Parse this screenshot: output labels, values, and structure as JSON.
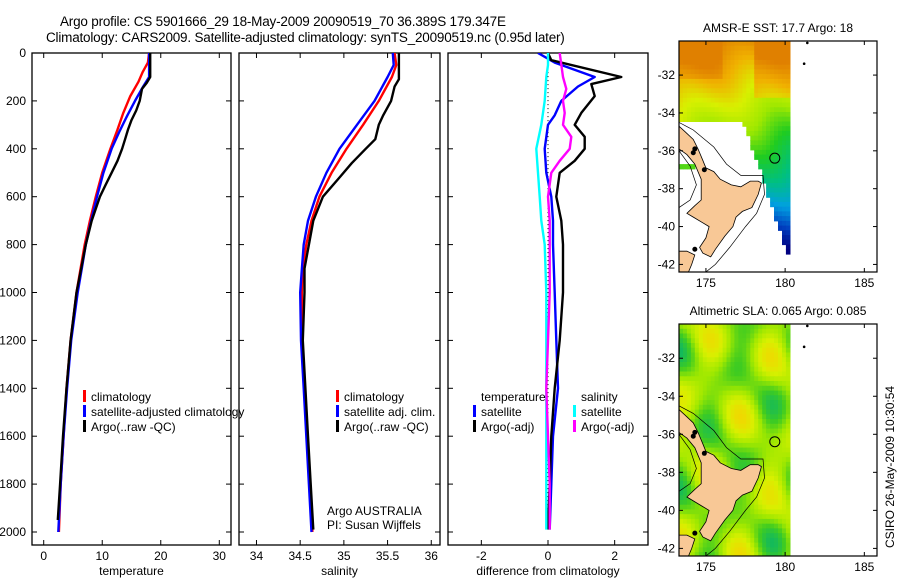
{
  "header": {
    "line1": "Argo profile: CS 5901666_29 18-May-2009 20090519_70 36.389S 179.347E",
    "line2": "Climatology: CARS2009. Satellite-adjusted climatology: synTS_20090519.nc (0.95d later)"
  },
  "footer_vertical": "CSIRO 26-May-2009 10:30:54",
  "chart_data": [
    {
      "id": "temperature",
      "type": "line",
      "xlabel": "temperature",
      "ylabel": "",
      "xlim": [
        -2,
        32
      ],
      "ylim": [
        0,
        2050
      ],
      "y_reversed": true,
      "xticks": [
        0,
        10,
        20,
        30
      ],
      "yticks": [
        0,
        200,
        400,
        600,
        800,
        1000,
        1200,
        1400,
        1600,
        1800,
        2000
      ],
      "legend": {
        "position": "center",
        "entries": [
          {
            "label": "climatology",
            "color": "#ff0000"
          },
          {
            "label": "satellite-adjusted climatology",
            "color": "#0000ff"
          },
          {
            "label": "Argo(..raw -QC)",
            "color": "#000000"
          }
        ]
      },
      "series": [
        {
          "name": "climatology",
          "color": "#ff0000",
          "depth": [
            0,
            40,
            80,
            120,
            180,
            250,
            320,
            400,
            500,
            600,
            700,
            800,
            900,
            1000,
            1200,
            1400,
            1600,
            1800,
            2000
          ],
          "values": [
            18.0,
            17.8,
            16.9,
            16.2,
            14.8,
            13.6,
            12.6,
            11.4,
            10.0,
            8.9,
            7.9,
            7.0,
            6.3,
            5.6,
            4.6,
            3.9,
            3.4,
            2.9,
            2.6
          ]
        },
        {
          "name": "satellite-adjusted climatology",
          "color": "#0000ff",
          "depth": [
            0,
            60,
            100,
            140,
            200,
            260,
            330,
            400,
            500,
            600,
            700,
            800,
            900,
            1000,
            1200,
            1400,
            1600,
            1800,
            2000
          ],
          "values": [
            18.0,
            18.0,
            18.0,
            17.0,
            15.6,
            14.3,
            12.9,
            11.6,
            10.2,
            9.1,
            8.1,
            7.2,
            6.5,
            5.8,
            4.7,
            4.0,
            3.4,
            2.9,
            2.5
          ]
        },
        {
          "name": "Argo(..raw -QC)",
          "color": "#000000",
          "depth": [
            0,
            100,
            125,
            150,
            200,
            240,
            280,
            320,
            360,
            400,
            450,
            500,
            550,
            600,
            700,
            800,
            900,
            1000,
            1200,
            1400,
            1600,
            1800,
            1950
          ],
          "values": [
            18.2,
            18.2,
            17.6,
            16.8,
            16.4,
            15.8,
            15.0,
            14.4,
            13.9,
            13.4,
            12.6,
            11.6,
            10.6,
            9.6,
            8.2,
            7.2,
            6.4,
            5.6,
            4.6,
            3.9,
            3.3,
            2.8,
            2.4
          ]
        }
      ]
    },
    {
      "id": "salinity",
      "type": "line",
      "xlabel": "salinity",
      "xlim": [
        33.8,
        36.1
      ],
      "ylim": [
        0,
        2050
      ],
      "y_reversed": true,
      "xticks": [
        34,
        34.5,
        35,
        35.5,
        36
      ],
      "xticklabels": [
        "34",
        "34.5",
        "35",
        "35.5",
        "36"
      ],
      "legend": {
        "position": "center-right",
        "entries": [
          {
            "label": "climatology",
            "color": "#ff0000"
          },
          {
            "label": "satellite adj. clim.",
            "color": "#0000ff"
          },
          {
            "label": "Argo(..raw -QC)",
            "color": "#000000"
          }
        ]
      },
      "annotation": [
        "Argo AUSTRALIA",
        "PI: Susan Wijffels"
      ],
      "series": [
        {
          "name": "climatology",
          "color": "#ff0000",
          "depth": [
            0,
            50,
            100,
            200,
            300,
            400,
            500,
            600,
            700,
            800,
            900,
            1000,
            1200,
            1400,
            1600,
            1800,
            2000
          ],
          "values": [
            35.58,
            35.6,
            35.55,
            35.4,
            35.22,
            35.03,
            34.86,
            34.72,
            34.63,
            34.57,
            34.53,
            34.52,
            34.52,
            34.55,
            34.58,
            34.61,
            34.64
          ]
        },
        {
          "name": "satellite adj. clim.",
          "color": "#0000ff",
          "depth": [
            0,
            50,
            100,
            200,
            300,
            400,
            500,
            600,
            700,
            800,
            900,
            1000,
            1200,
            1400,
            1600,
            1800,
            2000
          ],
          "values": [
            35.56,
            35.57,
            35.5,
            35.35,
            35.15,
            34.95,
            34.8,
            34.68,
            34.59,
            34.54,
            34.52,
            34.5,
            34.51,
            34.54,
            34.57,
            34.6,
            34.63
          ]
        },
        {
          "name": "Argo(..raw -QC)",
          "color": "#000000",
          "depth": [
            0,
            110,
            140,
            200,
            260,
            300,
            360,
            400,
            460,
            520,
            600,
            700,
            800,
            900,
            1000,
            1200,
            1400,
            1600,
            1800,
            1990
          ],
          "values": [
            35.63,
            35.63,
            35.58,
            35.54,
            35.45,
            35.4,
            35.36,
            35.25,
            35.09,
            34.95,
            34.76,
            34.65,
            34.6,
            34.55,
            34.55,
            34.53,
            34.56,
            34.59,
            34.62,
            34.65
          ]
        }
      ]
    },
    {
      "id": "difference",
      "type": "line",
      "xlabel": "difference from climatology",
      "xlim": [
        -3,
        3
      ],
      "ylim": [
        0,
        2050
      ],
      "y_reversed": true,
      "xticks": [
        -2,
        0,
        2
      ],
      "zero_line": "dotted",
      "legend": {
        "position": "center",
        "groups": [
          {
            "title": "temperature",
            "entries": [
              {
                "label": "satellite",
                "color": "#0000ff"
              },
              {
                "label": "Argo(-adj)",
                "color": "#000000"
              }
            ]
          },
          {
            "title": "salinity",
            "entries": [
              {
                "label": "satellite",
                "color": "#00ffff"
              },
              {
                "label": "Argo(-adj)",
                "color": "#ff00ff"
              }
            ]
          }
        ]
      },
      "series": [
        {
          "name": "temperature satellite",
          "color": "#0000ff",
          "depth": [
            0,
            40,
            100,
            140,
            200,
            260,
            300,
            400,
            500,
            600,
            700,
            800,
            1000,
            1200,
            1400,
            1600,
            1800,
            1990
          ],
          "values": [
            -0.3,
            0.2,
            1.4,
            0.9,
            0.4,
            0.2,
            0.0,
            -0.1,
            -0.05,
            0.1,
            0.15,
            0.15,
            0.2,
            0.25,
            0.3,
            0.15,
            0.1,
            0.05
          ]
        },
        {
          "name": "temperature Argo(-adj)",
          "color": "#000000",
          "depth": [
            0,
            30,
            100,
            130,
            180,
            250,
            300,
            350,
            400,
            450,
            500,
            600,
            700,
            800,
            1000,
            1200,
            1400,
            1600,
            1800,
            1990
          ],
          "values": [
            0.0,
            0.1,
            2.2,
            1.3,
            1.4,
            1.0,
            0.8,
            1.1,
            1.1,
            0.8,
            0.35,
            0.25,
            0.4,
            0.45,
            0.45,
            0.35,
            0.2,
            0.1,
            0.05,
            0.0
          ]
        },
        {
          "name": "salinity satellite",
          "color": "#00ffff",
          "depth": [
            0,
            50,
            100,
            200,
            300,
            400,
            500,
            600,
            700,
            800,
            1000,
            1200,
            1400,
            1600,
            1800,
            1990
          ],
          "values": [
            0.0,
            0.0,
            -0.05,
            -0.1,
            -0.2,
            -0.35,
            -0.3,
            -0.25,
            -0.2,
            -0.1,
            -0.05,
            -0.05,
            -0.05,
            -0.05,
            -0.05,
            -0.05
          ]
        },
        {
          "name": "salinity Argo(-adj)",
          "color": "#ff00ff",
          "depth": [
            0,
            100,
            150,
            200,
            250,
            300,
            350,
            400,
            450,
            500,
            600,
            700,
            800,
            1000,
            1200,
            1400,
            1600,
            1800,
            1990
          ],
          "values": [
            0.35,
            0.45,
            0.55,
            0.45,
            0.5,
            0.45,
            0.7,
            0.65,
            0.35,
            0.1,
            0.0,
            0.05,
            0.05,
            0.05,
            0.0,
            -0.05,
            0.0,
            0.05,
            0.05
          ]
        }
      ]
    },
    {
      "id": "sst-map",
      "type": "heatmap",
      "title": "AMSR-E SST: 17.7 Argo: 18",
      "xlim": [
        173.3,
        185.8
      ],
      "ylim": [
        -42.4,
        -30.2
      ],
      "xticks": [
        175,
        180,
        185
      ],
      "yticks": [
        -32,
        -34,
        -36,
        -38,
        -40,
        -42
      ],
      "data_extent_lon": [
        173.3,
        180.2
      ],
      "marker": {
        "lon": 179.347,
        "lat": -36.389,
        "shape": "circle"
      },
      "colors_north_to_south": [
        "#e08000",
        "#f0b000",
        "#d8f000",
        "#a0e800",
        "#20cc20",
        "#00c080",
        "#00a0e0",
        "#0040c0",
        "#000080"
      ]
    },
    {
      "id": "sla-map",
      "type": "heatmap",
      "title": "Altimetric SLA: 0.065 Argo: 0.085",
      "xlim": [
        173.3,
        185.8
      ],
      "ylim": [
        -42.4,
        -30.2
      ],
      "xticks": [
        175,
        180,
        185
      ],
      "yticks": [
        -32,
        -34,
        -36,
        -38,
        -40,
        -42
      ],
      "data_extent_lon": [
        173.3,
        180.2
      ],
      "marker": {
        "lon": 179.347,
        "lat": -36.389,
        "shape": "circle"
      },
      "colors": [
        "#f0d800",
        "#d8f000",
        "#a0e800",
        "#40cc20",
        "#10b860"
      ]
    }
  ]
}
